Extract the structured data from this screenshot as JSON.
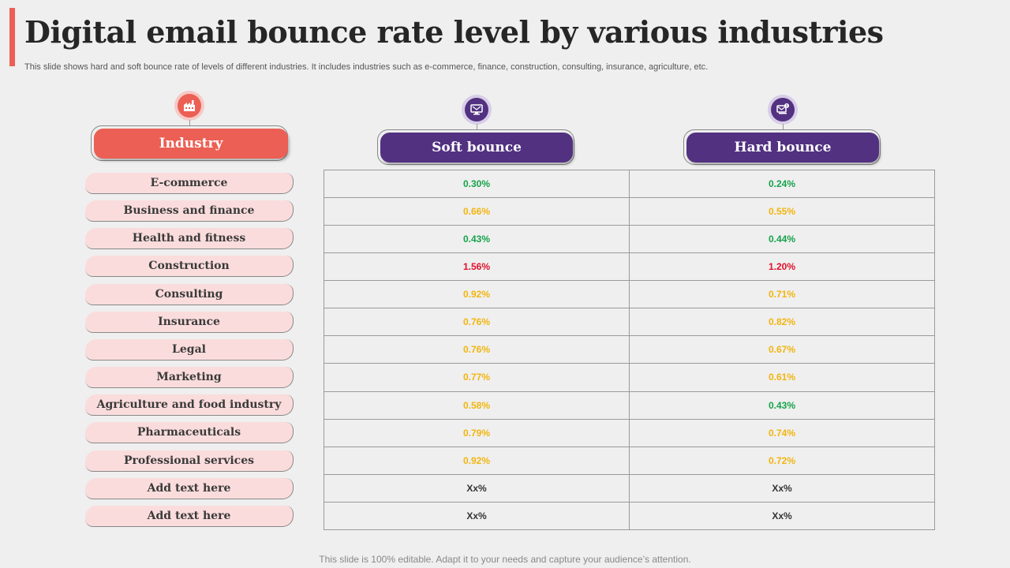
{
  "title": "Digital email bounce rate level by various industries",
  "subtitle": "This slide shows hard and soft bounce rate of levels of different industries. It includes industries such as e-commerce, finance, construction, consulting, insurance, agriculture, etc.",
  "footer": "This slide is 100% editable. Adapt it to your needs and capture your audience’s attention.",
  "colors": {
    "accent": "#ec5f54",
    "purple": "#523181",
    "row_fill": "#fbdcdc",
    "green": "#16a34a",
    "yellow": "#f2b50f",
    "red": "#e0112b",
    "dark": "#333333"
  },
  "headers": {
    "industry": {
      "label": "Industry",
      "icon": "factory-icon"
    },
    "soft": {
      "label": "Soft bounce",
      "icon": "email-monitor-icon"
    },
    "hard": {
      "label": "Hard bounce",
      "icon": "email-alert-icon"
    }
  },
  "rows": [
    {
      "industry": "E-commerce",
      "soft": "0.30%",
      "soft_level": "green",
      "hard": "0.24%",
      "hard_level": "green"
    },
    {
      "industry": "Business and finance",
      "soft": "0.66%",
      "soft_level": "yellow",
      "hard": "0.55%",
      "hard_level": "yellow"
    },
    {
      "industry": "Health and fitness",
      "soft": "0.43%",
      "soft_level": "green",
      "hard": "0.44%",
      "hard_level": "green"
    },
    {
      "industry": "Construction",
      "soft": "1.56%",
      "soft_level": "red",
      "hard": "1.20%",
      "hard_level": "red"
    },
    {
      "industry": "Consulting",
      "soft": "0.92%",
      "soft_level": "yellow",
      "hard": "0.71%",
      "hard_level": "yellow"
    },
    {
      "industry": "Insurance",
      "soft": "0.76%",
      "soft_level": "yellow",
      "hard": "0.82%",
      "hard_level": "yellow"
    },
    {
      "industry": "Legal",
      "soft": "0.76%",
      "soft_level": "yellow",
      "hard": "0.67%",
      "hard_level": "yellow"
    },
    {
      "industry": "Marketing",
      "soft": "0.77%",
      "soft_level": "yellow",
      "hard": "0.61%",
      "hard_level": "yellow"
    },
    {
      "industry": "Agriculture and food industry",
      "soft": "0.58%",
      "soft_level": "yellow",
      "hard": "0.43%",
      "hard_level": "green"
    },
    {
      "industry": "Pharmaceuticals",
      "soft": "0.79%",
      "soft_level": "yellow",
      "hard": "0.74%",
      "hard_level": "yellow"
    },
    {
      "industry": "Professional services",
      "soft": "0.92%",
      "soft_level": "yellow",
      "hard": "0.72%",
      "hard_level": "yellow"
    },
    {
      "industry": "Add text here",
      "soft": "Xx%",
      "soft_level": "dark",
      "hard": "Xx%",
      "hard_level": "dark"
    },
    {
      "industry": "Add text here",
      "soft": "Xx%",
      "soft_level": "dark",
      "hard": "Xx%",
      "hard_level": "dark"
    }
  ]
}
